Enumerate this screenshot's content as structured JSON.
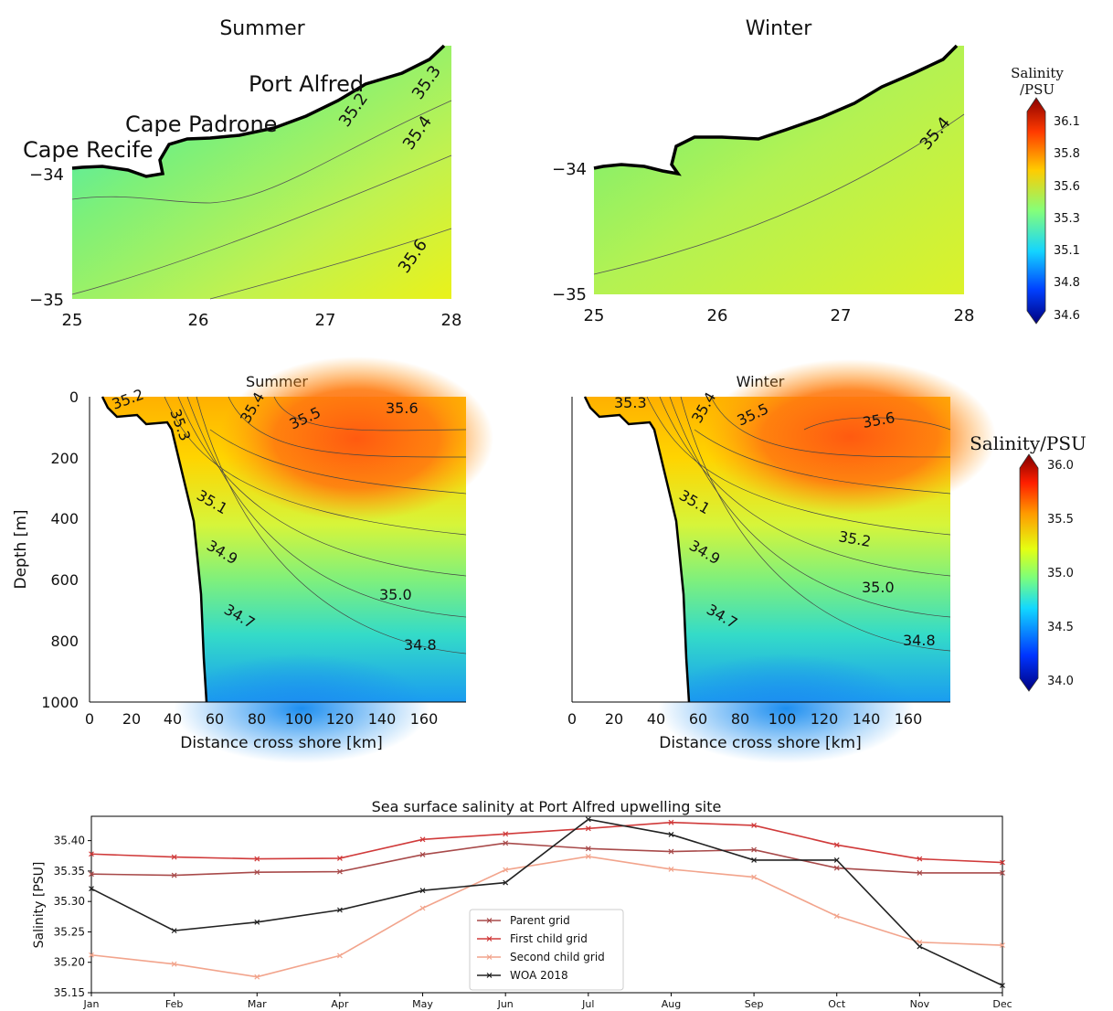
{
  "chart_data": [
    {
      "type": "heatmap",
      "title": "Summer",
      "x_ticks": [
        "25",
        "26",
        "27",
        "28"
      ],
      "y_ticks": [
        "−34",
        "−35"
      ],
      "xlim": [
        25,
        28
      ],
      "ylim": [
        -35,
        -33.55
      ],
      "place_labels": [
        "Cape Recife",
        "Cape Padrone",
        "Port Alfred"
      ],
      "contour_labels": [
        "35.2",
        "35.3",
        "35.4",
        "35.6"
      ]
    },
    {
      "type": "heatmap",
      "title": "Winter",
      "x_ticks": [
        "25",
        "26",
        "27",
        "28"
      ],
      "y_ticks": [
        "−34",
        "−35"
      ],
      "xlim": [
        25,
        28
      ],
      "ylim": [
        -35,
        -33.55
      ],
      "contour_labels": [
        "35.4"
      ]
    },
    {
      "type": "heatmap",
      "title": "Summer",
      "xlabel": "Distance cross shore [km]",
      "ylabel": "Depth [m]",
      "x_ticks": [
        "0",
        "20",
        "40",
        "60",
        "80",
        "100",
        "120",
        "140",
        "160"
      ],
      "y_ticks": [
        "0",
        "200",
        "400",
        "600",
        "800",
        "1000"
      ],
      "xlim": [
        0,
        180
      ],
      "ylim": [
        1000,
        0
      ],
      "contour_labels": [
        "35.2",
        "35.3",
        "35.4",
        "35.5",
        "35.6",
        "35.1",
        "34.9",
        "35.0",
        "34.7",
        "34.8"
      ]
    },
    {
      "type": "heatmap",
      "title": "Winter",
      "xlabel": "Distance cross shore [km]",
      "x_ticks": [
        "0",
        "20",
        "40",
        "60",
        "80",
        "100",
        "120",
        "140",
        "160"
      ],
      "y_ticks": [
        "0",
        "200",
        "400",
        "600",
        "800",
        "1000"
      ],
      "xlim": [
        0,
        180
      ],
      "ylim": [
        1000,
        0
      ],
      "contour_labels": [
        "35.3",
        "35.4",
        "35.5",
        "35.6",
        "35.1",
        "35.2",
        "34.9",
        "35.0",
        "34.7",
        "34.8"
      ]
    },
    {
      "type": "line",
      "title": "Sea surface salinity at Port Alfred upwelling site",
      "ylabel": "Salinity [PSU]",
      "categories": [
        "Jan",
        "Feb",
        "Mar",
        "Apr",
        "May",
        "Jun",
        "Jul",
        "Aug",
        "Sep",
        "Oct",
        "Nov",
        "Dec"
      ],
      "ylim": [
        35.15,
        35.44
      ],
      "y_ticks": [
        "35.15",
        "35.20",
        "35.25",
        "35.30",
        "35.35",
        "35.40"
      ],
      "legend_position": "bottom-center",
      "series": [
        {
          "name": "Parent grid",
          "color": "#a84a4a",
          "values": [
            35.345,
            35.343,
            35.348,
            35.349,
            35.377,
            35.396,
            35.387,
            35.382,
            35.385,
            35.355,
            35.347,
            35.347
          ]
        },
        {
          "name": "First child grid",
          "color": "#d03a3a",
          "values": [
            35.378,
            35.373,
            35.37,
            35.371,
            35.402,
            35.411,
            35.42,
            35.43,
            35.425,
            35.393,
            35.37,
            35.364
          ]
        },
        {
          "name": "Second child grid",
          "color": "#f2a48c",
          "values": [
            35.212,
            35.197,
            35.176,
            35.211,
            35.289,
            35.352,
            35.374,
            35.353,
            35.34,
            35.276,
            35.233,
            35.228
          ]
        },
        {
          "name": "WOA 2018",
          "color": "#222222",
          "values": [
            35.321,
            35.252,
            35.266,
            35.286,
            35.318,
            35.331,
            35.435,
            35.41,
            35.368,
            35.368,
            35.226,
            35.162
          ]
        }
      ]
    }
  ],
  "colorbars": [
    {
      "label": "Salinity\n/PSU",
      "label_lines": [
        "Salinity",
        "/PSU"
      ],
      "ticks": [
        "36.1",
        "35.8",
        "35.6",
        "35.3",
        "35.1",
        "34.8",
        "34.6"
      ]
    },
    {
      "label": "Salinity/PSU",
      "ticks": [
        "36.0",
        "35.5",
        "35.0",
        "34.5",
        "34.0"
      ]
    }
  ]
}
